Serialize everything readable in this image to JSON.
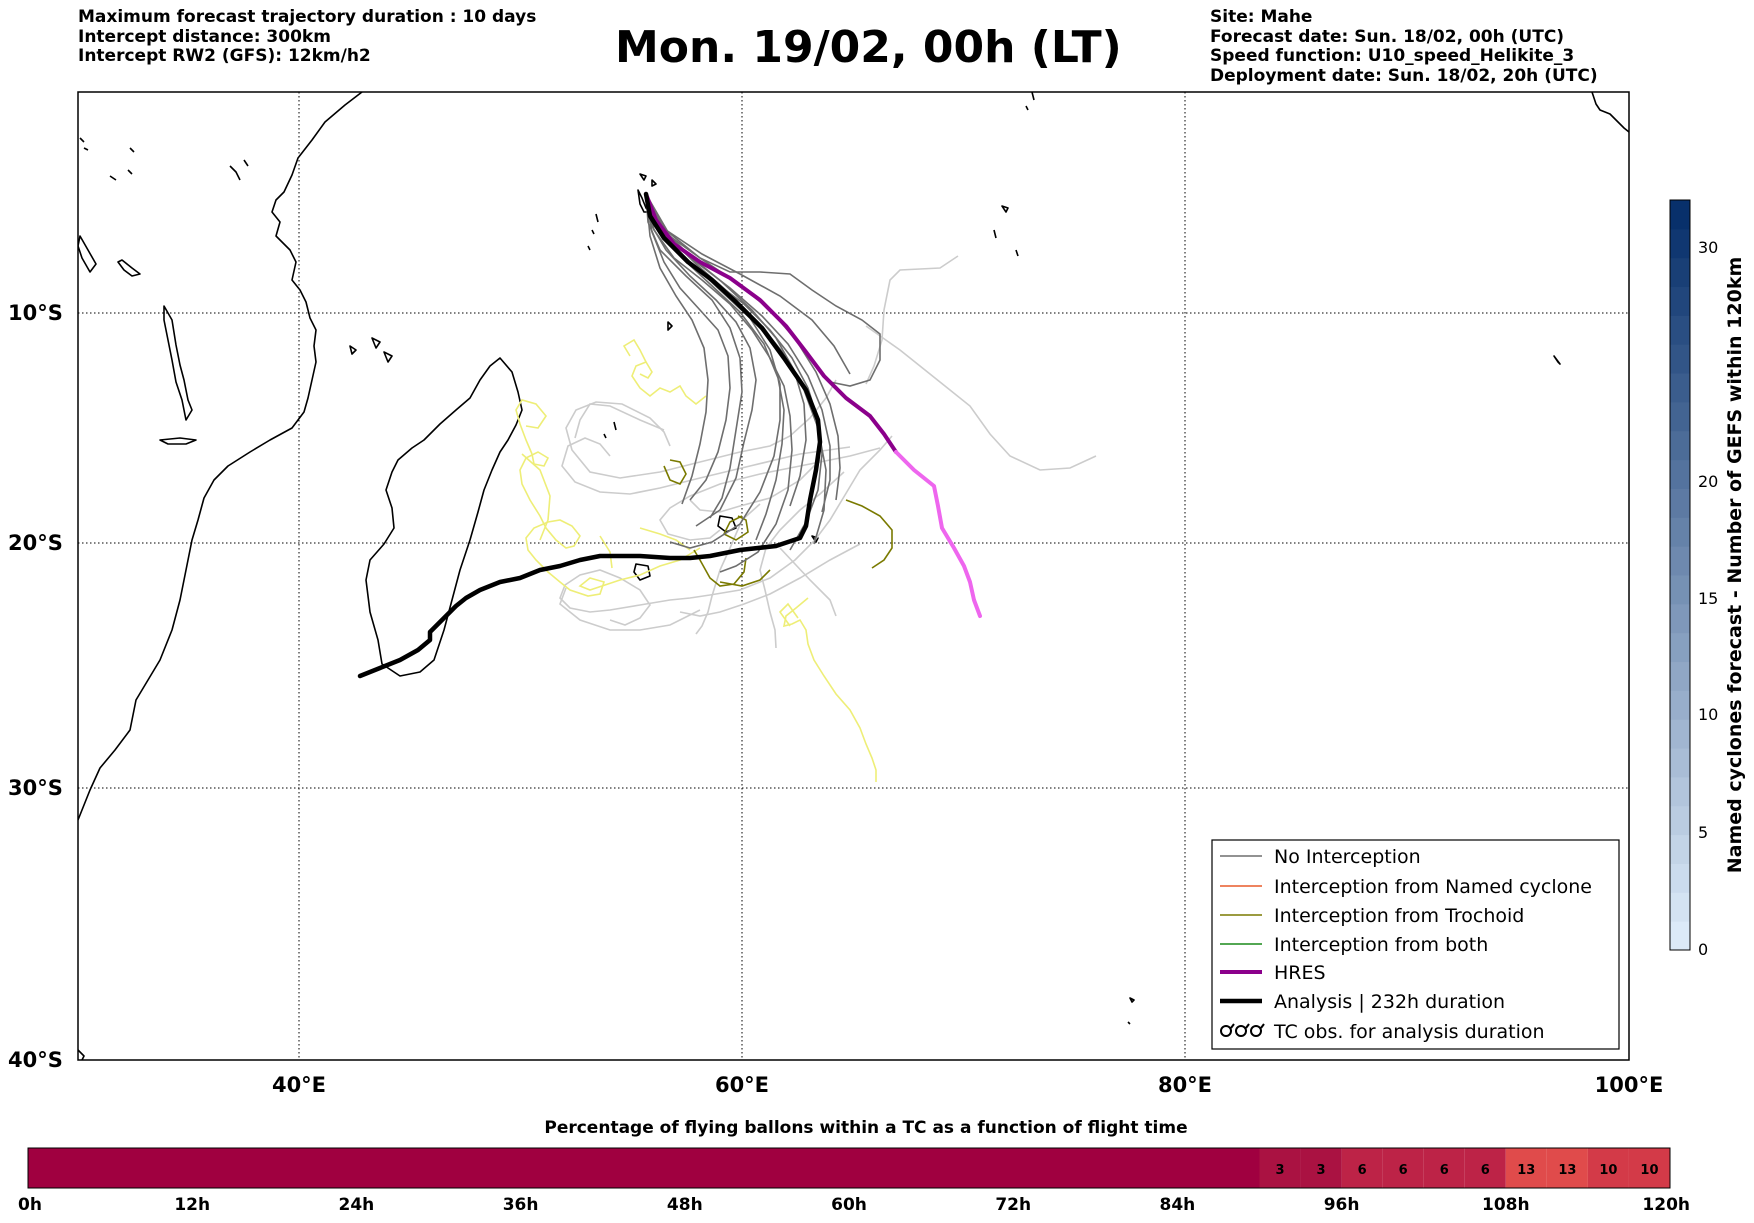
{
  "header": {
    "left": [
      "Maximum forecast trajectory duration : 10 days",
      "Intercept distance: 300km",
      "Intercept RW2 (GFS):  12km/h2"
    ],
    "title": "Mon. 19/02, 00h (LT)",
    "right": [
      "Site: Mahe",
      "Forecast date: Sun. 18/02, 00h (UTC)",
      "Speed function: U10_speed_Helikite_3",
      "Deployment date: Sun. 18/02, 20h (UTC)"
    ]
  },
  "map": {
    "lon_range": [
      30,
      100
    ],
    "lat_range": [
      -40,
      0
    ],
    "lat_gridlines": [
      {
        "value": -10,
        "label": "10°S"
      },
      {
        "value": -20,
        "label": "20°S"
      },
      {
        "value": -30,
        "label": "30°S"
      },
      {
        "value": -40,
        "label": "40°S"
      }
    ],
    "lon_gridlines": [
      {
        "value": 40,
        "label": "40°E"
      },
      {
        "value": 60,
        "label": "60°E"
      },
      {
        "value": 80,
        "label": "80°E"
      },
      {
        "value": 100,
        "label": "100°E"
      }
    ],
    "colors": {
      "no_interception": "#6e6e6e",
      "named_cyclone": "#e85a2a",
      "trochoid": "#7a7a00",
      "both": "#1a8a1a",
      "hres": "#8b008b",
      "hres_late": "#ee66ee",
      "analysis": "#000000",
      "late_trajectory": "#cccccc",
      "late_trochoid": "#eeee77"
    }
  },
  "legend": [
    {
      "label": "No Interception",
      "style": "no_interception"
    },
    {
      "label": "Interception from Named cyclone",
      "style": "named_cyclone"
    },
    {
      "label": "Interception from Trochoid",
      "style": "trochoid"
    },
    {
      "label": "Interception from both",
      "style": "both"
    },
    {
      "label": "HRES",
      "style": "hres"
    },
    {
      "label": "Analysis | 232h duration",
      "style": "analysis"
    },
    {
      "label": "TC obs. for analysis duration",
      "style": "tc_obs"
    }
  ],
  "side_colorbar": {
    "label": "Named cyclones forecast - Number of GEFS within 120km",
    "ticks": [
      "0",
      "5",
      "10",
      "15",
      "20",
      "30"
    ]
  },
  "bottom_colorbar": {
    "title": "Percentage of flying ballons within a TC as a function of flight time",
    "tick_labels": [
      "0h",
      "12h",
      "24h",
      "36h",
      "48h",
      "60h",
      "72h",
      "84h",
      "96h",
      "108h",
      "120h"
    ],
    "cells": [
      {
        "from_h": 0,
        "to_h": 90,
        "value": "",
        "color": "#a00040"
      },
      {
        "from_h": 90,
        "to_h": 93,
        "value": "3",
        "color": "#aa1242"
      },
      {
        "from_h": 93,
        "to_h": 96,
        "value": "3",
        "color": "#aa1242"
      },
      {
        "from_h": 96,
        "to_h": 99,
        "value": "6",
        "color": "#bd2347"
      },
      {
        "from_h": 99,
        "to_h": 102,
        "value": "6",
        "color": "#bd2347"
      },
      {
        "from_h": 102,
        "to_h": 105,
        "value": "6",
        "color": "#bd2347"
      },
      {
        "from_h": 105,
        "to_h": 108,
        "value": "6",
        "color": "#bd2347"
      },
      {
        "from_h": 108,
        "to_h": 111,
        "value": "13",
        "color": "#e04b4b"
      },
      {
        "from_h": 111,
        "to_h": 114,
        "value": "13",
        "color": "#e04b4b"
      },
      {
        "from_h": 114,
        "to_h": 117,
        "value": "10",
        "color": "#d33a48"
      },
      {
        "from_h": 117,
        "to_h": 120,
        "value": "10",
        "color": "#d33a48"
      }
    ]
  }
}
